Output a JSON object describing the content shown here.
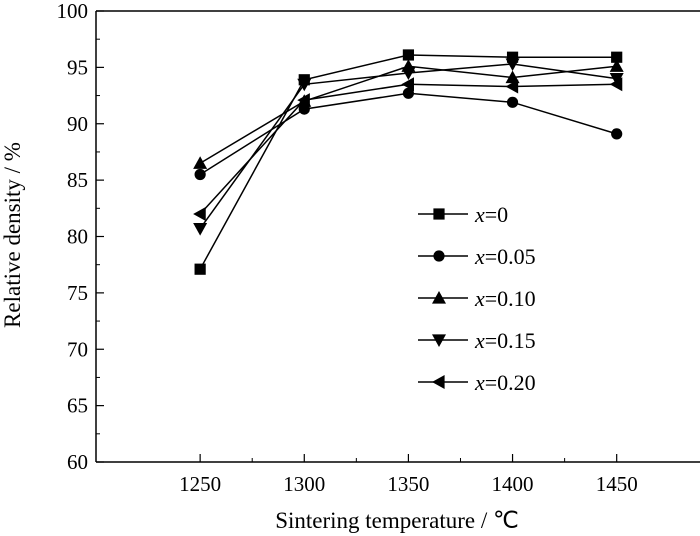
{
  "chart_data": {
    "type": "line",
    "title": "",
    "xlabel": "Sintering temperature / ℃",
    "ylabel": "Relative density / %",
    "x": [
      1250,
      1300,
      1350,
      1400,
      1450
    ],
    "xlim": [
      1200,
      1490
    ],
    "ylim": [
      60,
      100
    ],
    "xticks": [
      1250,
      1300,
      1350,
      1400,
      1450
    ],
    "yticks": [
      60,
      65,
      70,
      75,
      80,
      85,
      90,
      95,
      100
    ],
    "grid": false,
    "legend_position": "center-right",
    "series": [
      {
        "name": "x=0",
        "var": "x",
        "value": "=0",
        "marker": "square",
        "values": [
          77.1,
          93.9,
          96.1,
          95.9,
          95.9
        ]
      },
      {
        "name": "x=0.05",
        "var": "x",
        "value": "=0.05",
        "marker": "circle",
        "values": [
          85.5,
          91.3,
          92.7,
          91.9,
          89.1
        ]
      },
      {
        "name": "x=0.10",
        "var": "x",
        "value": "=0.10",
        "marker": "triangle-up",
        "values": [
          86.5,
          92.0,
          95.1,
          94.1,
          95.1
        ]
      },
      {
        "name": "x=0.15",
        "var": "x",
        "value": "=0.15",
        "marker": "triangle-down",
        "values": [
          80.7,
          93.5,
          94.5,
          95.3,
          94.0
        ]
      },
      {
        "name": "x=0.20",
        "var": "x",
        "value": "=0.20",
        "marker": "triangle-left",
        "values": [
          82.0,
          92.1,
          93.5,
          93.3,
          93.5
        ]
      }
    ],
    "line_color": "#000000",
    "marker_color": "#000000"
  }
}
